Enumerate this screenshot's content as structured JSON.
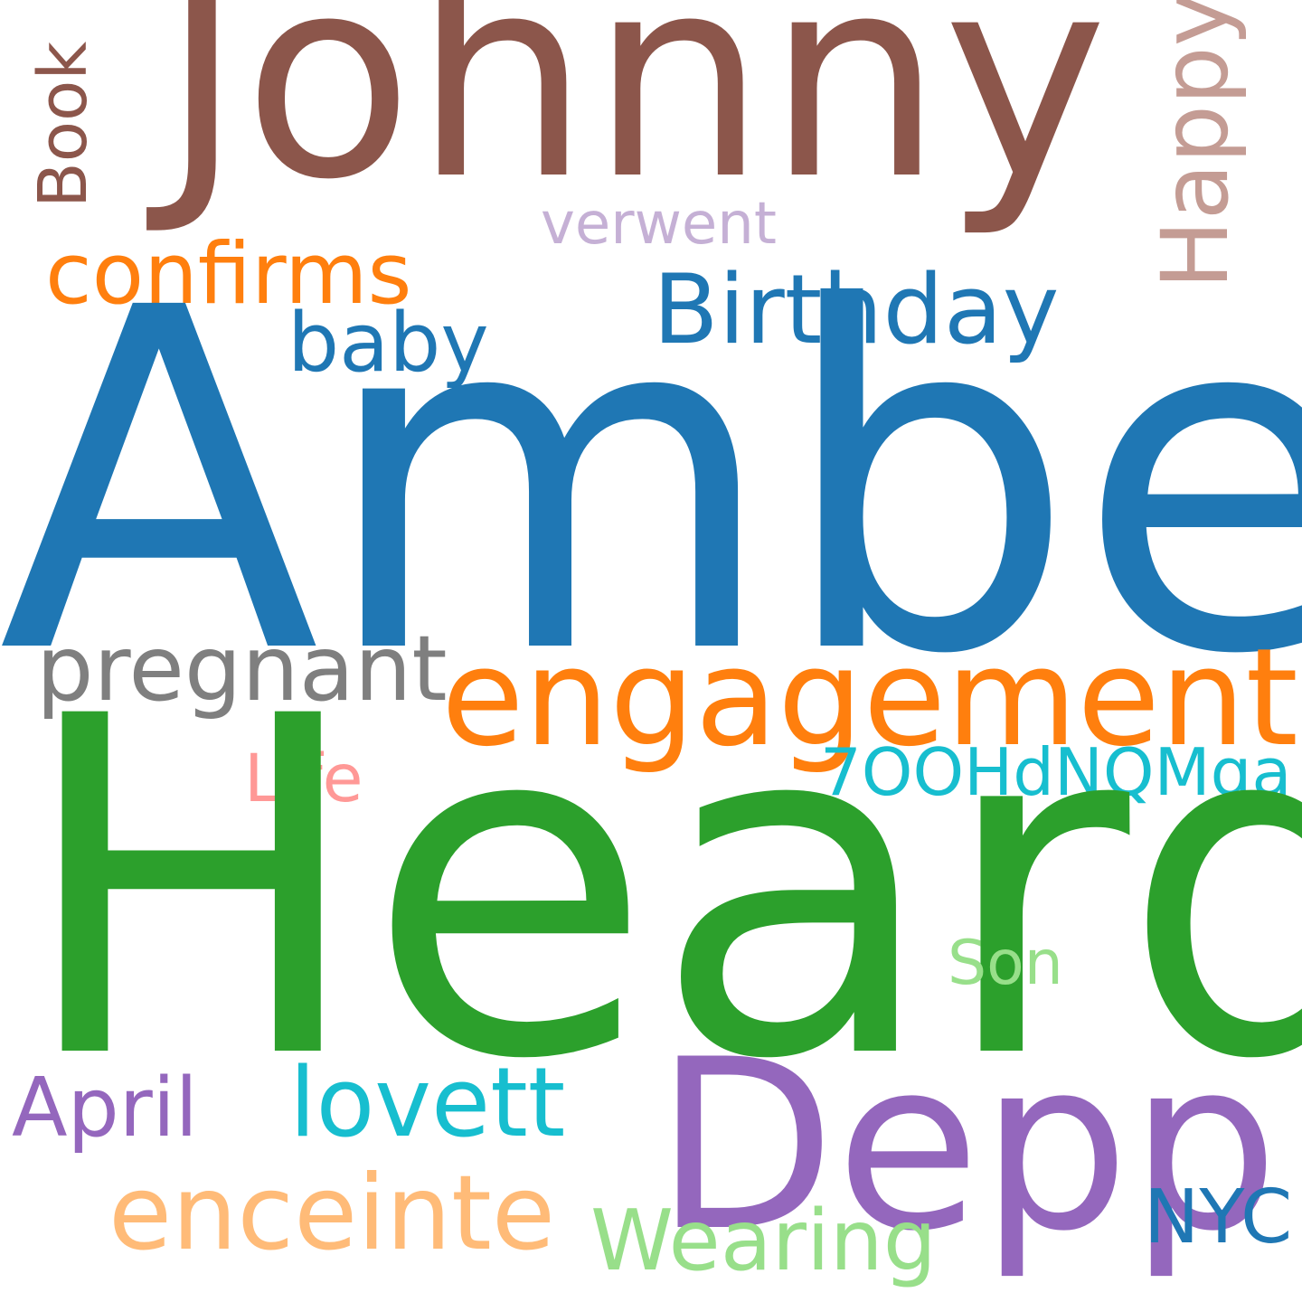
{
  "background": "#ffffff",
  "words": {
    "johnny": {
      "text": "Johnny",
      "color": "#8c564b"
    },
    "amber": {
      "text": "Amber",
      "color": "#1f77b4"
    },
    "heard": {
      "text": "Heard",
      "color": "#2ca02c"
    },
    "depp": {
      "text": "Depp",
      "color": "#9467bd"
    },
    "engagement": {
      "text": "engagement",
      "color": "#ff7f0e"
    },
    "birthday": {
      "text": "Birthday",
      "color": "#1f77b4"
    },
    "confirms": {
      "text": "confirms",
      "color": "#ff7f0e"
    },
    "baby": {
      "text": "baby",
      "color": "#1f77b4"
    },
    "pregnant": {
      "text": "pregnant",
      "color": "#7f7f7f"
    },
    "verwent": {
      "text": "verwent",
      "color": "#c5b0d5"
    },
    "book": {
      "text": "Book",
      "color": "#8c564b"
    },
    "happy": {
      "text": "Happy",
      "color": "#c49c94"
    },
    "life": {
      "text": "Life",
      "color": "#ff9896"
    },
    "code": {
      "text": "7OOHdNQMqa",
      "color": "#17becf"
    },
    "son": {
      "text": "Son",
      "color": "#98df8a"
    },
    "april": {
      "text": "April",
      "color": "#9467bd"
    },
    "lovett": {
      "text": "lovett",
      "color": "#17becf"
    },
    "enceinte": {
      "text": "enceinte",
      "color": "#ffbb78"
    },
    "wearing": {
      "text": "Wearing",
      "color": "#98df8a"
    },
    "nyc": {
      "text": "NYC",
      "color": "#1f77b4"
    }
  }
}
